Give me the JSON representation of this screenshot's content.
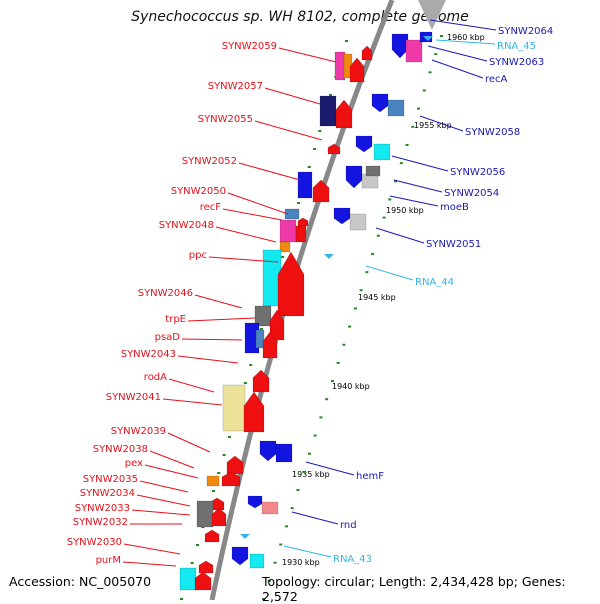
{
  "title": "Synechococcus sp. WH 8102, complete genome",
  "accession": "Accession: NC_005070",
  "summary": "Topology: circular; Length: 2,434,428 bp; Genes: 2,572",
  "colors": {
    "forward_label": "#e8101a",
    "reverse_label": "#1a1ab4",
    "rna_label": "#33b5e5",
    "axis": "#888888",
    "tick_dot": "#1f8a1f"
  },
  "ticks": [
    {
      "label": "1930 kbp",
      "kbp": 1930
    },
    {
      "label": "1935 kbp",
      "kbp": 1935
    },
    {
      "label": "1940 kbp",
      "kbp": 1940
    },
    {
      "label": "1945 kbp",
      "kbp": 1945
    },
    {
      "label": "1950 kbp",
      "kbp": 1950
    },
    {
      "label": "1955 kbp",
      "kbp": 1955
    },
    {
      "label": "1960 kbp",
      "kbp": 1960
    }
  ],
  "forward_labels": [
    "SYNW2059",
    "SYNW2057",
    "SYNW2055",
    "SYNW2052",
    "SYNW2050",
    "recF",
    "SYNW2048",
    "ppc",
    "SYNW2046",
    "trpE",
    "psaD",
    "SYNW2043",
    "rodA",
    "SYNW2041",
    "SYNW2039",
    "SYNW2038",
    "pex",
    "SYNW2035",
    "SYNW2034",
    "SYNW2033",
    "SYNW2032",
    "SYNW2030",
    "purM"
  ],
  "reverse_labels": [
    "SYNW2064",
    "SYNW2063",
    "recA",
    "SYNW2058",
    "SYNW2056",
    "SYNW2054",
    "moeB",
    "SYNW2051",
    "hemF",
    "rnd"
  ],
  "rna_labels": [
    "RNA_45",
    "RNA_44",
    "RNA_43"
  ]
}
